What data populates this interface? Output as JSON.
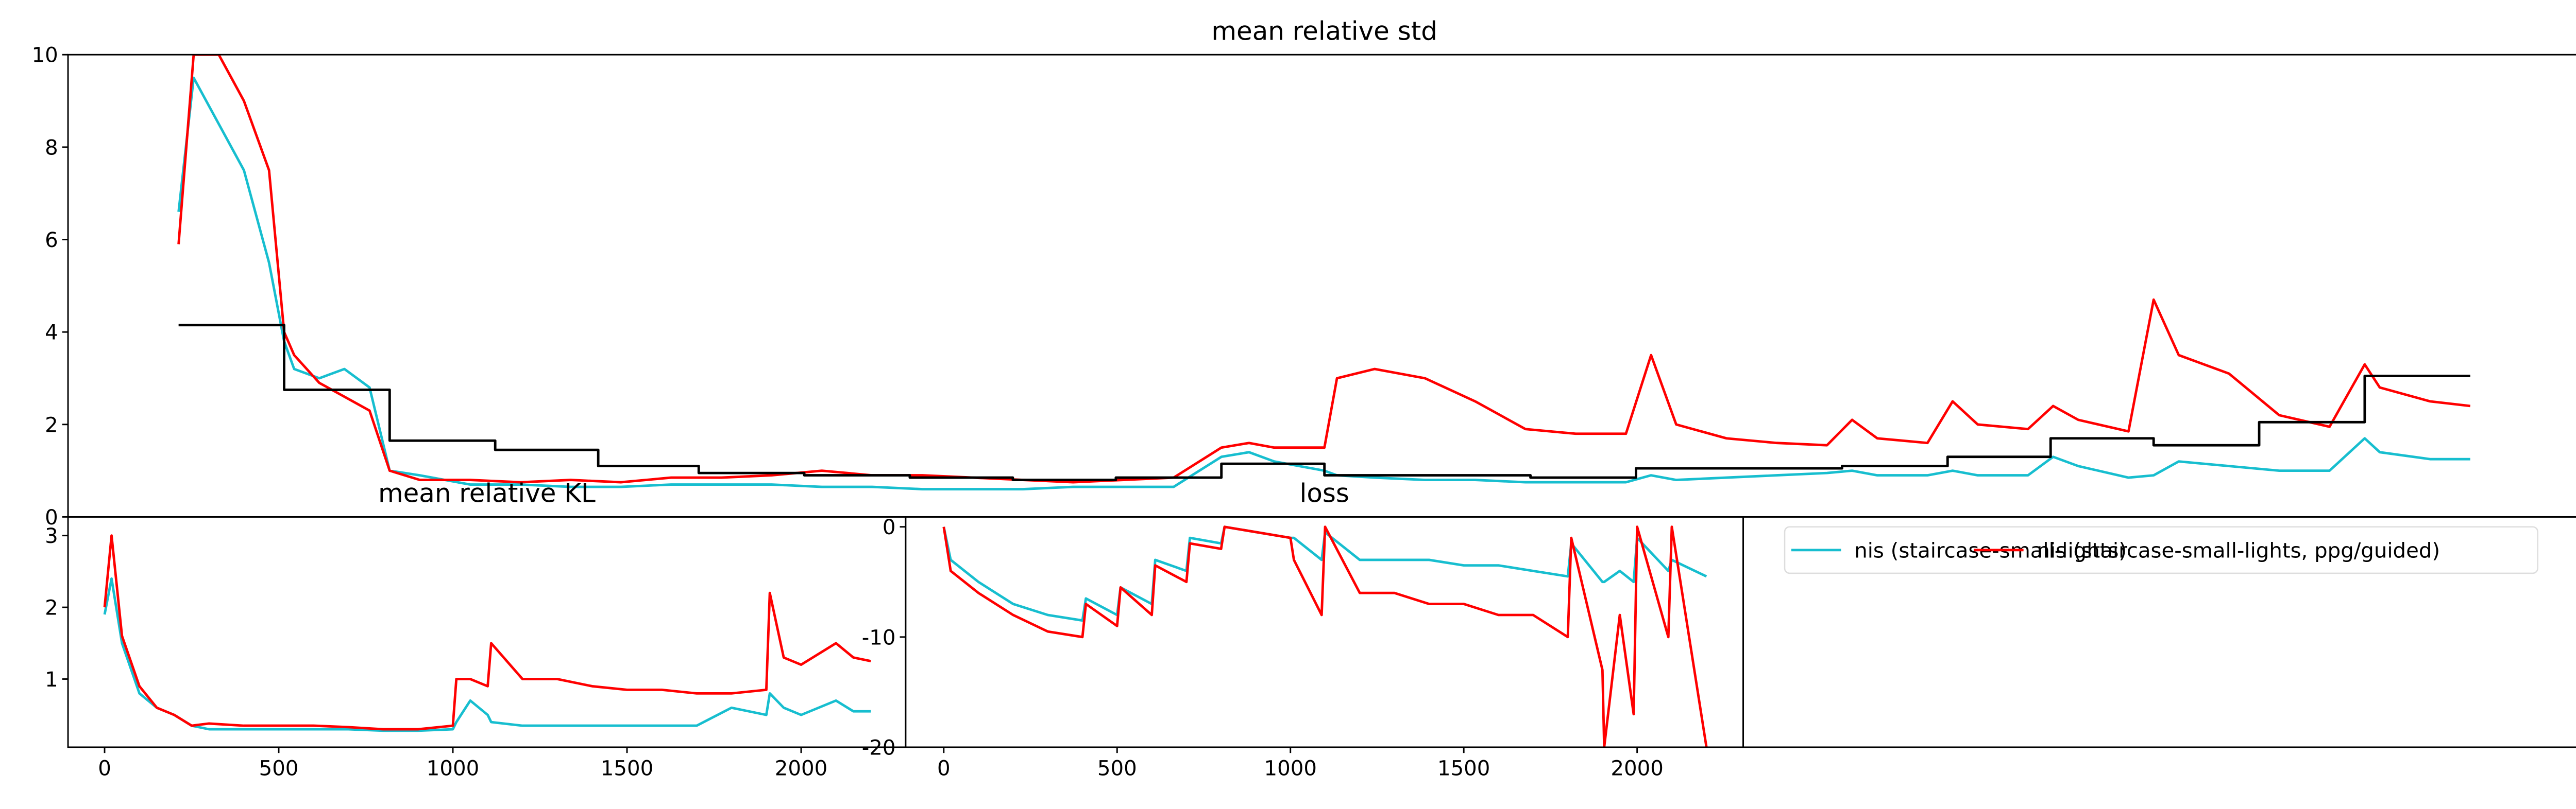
{
  "chart_data": [
    {
      "type": "line",
      "title": "mean relative std",
      "x": [
        4.4,
        5,
        6,
        7,
        8,
        8.6,
        9,
        10,
        11,
        12,
        12.8,
        14,
        16,
        18,
        20,
        22,
        24,
        26,
        28,
        30,
        32,
        34,
        36,
        38,
        40,
        42,
        44,
        45.9,
        47,
        48,
        50,
        50.5,
        52,
        54,
        56,
        58,
        60,
        62,
        63,
        64,
        66,
        68,
        70,
        71,
        72,
        74,
        75,
        76,
        78,
        79,
        80,
        82,
        83,
        84,
        86,
        88,
        90,
        91.4,
        92,
        94,
        95.6
      ],
      "xlim": [
        0,
        100
      ],
      "ylim": [
        0,
        10
      ],
      "yticks": [
        0,
        2,
        4,
        6,
        8,
        10
      ],
      "series": [
        {
          "color": "#17becf",
          "values": [
            6.6,
            9.5,
            8.5,
            7.5,
            5.5,
            3.8,
            3.2,
            3.0,
            3.2,
            2.8,
            1.0,
            0.9,
            0.7,
            0.7,
            0.65,
            0.65,
            0.7,
            0.7,
            0.7,
            0.65,
            0.65,
            0.6,
            0.6,
            0.6,
            0.65,
            0.65,
            0.65,
            1.3,
            1.4,
            1.2,
            1.0,
            0.9,
            0.85,
            0.8,
            0.8,
            0.75,
            0.75,
            0.75,
            0.9,
            0.8,
            0.85,
            0.9,
            0.95,
            1.0,
            0.9,
            0.9,
            1.0,
            0.9,
            0.9,
            1.3,
            1.1,
            0.85,
            0.9,
            1.2,
            1.1,
            1.0,
            1.0,
            1.7,
            1.4,
            1.25,
            1.25
          ]
        },
        {
          "color": "#ff0000",
          "values": [
            5.9,
            10,
            10,
            9,
            7.5,
            4.0,
            3.5,
            2.9,
            2.6,
            2.3,
            1.0,
            0.8,
            0.8,
            0.75,
            0.8,
            0.75,
            0.85,
            0.85,
            0.9,
            1.0,
            0.9,
            0.9,
            0.85,
            0.8,
            0.75,
            0.8,
            0.85,
            1.5,
            1.6,
            1.5,
            1.5,
            3.0,
            3.2,
            3.0,
            2.5,
            1.9,
            1.8,
            1.8,
            3.5,
            2.0,
            1.7,
            1.6,
            1.55,
            2.1,
            1.7,
            1.6,
            2.5,
            2.0,
            1.9,
            2.4,
            2.1,
            1.85,
            4.7,
            3.5,
            3.1,
            2.2,
            1.95,
            3.3,
            2.8,
            2.5,
            2.4
          ]
        },
        {
          "color": "#000000",
          "step": "post",
          "x": [
            4.4,
            8.6,
            12.8,
            17.0,
            21.1,
            25.1,
            29.3,
            33.5,
            37.6,
            41.7,
            45.9,
            50.0,
            54.1,
            58.2,
            62.4,
            66.5,
            70.6,
            74.8,
            78.9,
            83.0,
            87.2,
            91.4,
            95.6
          ],
          "values": [
            4.15,
            2.75,
            1.65,
            1.45,
            1.1,
            0.95,
            0.9,
            0.85,
            0.8,
            0.85,
            1.15,
            0.9,
            0.9,
            0.85,
            1.05,
            1.05,
            1.1,
            1.3,
            1.7,
            1.55,
            2.05,
            3.05,
            3.05
          ]
        }
      ]
    },
    {
      "type": "line",
      "title": "mean relative KL",
      "x": [
        0,
        20,
        50,
        100,
        150,
        200,
        250,
        300,
        400,
        500,
        600,
        700,
        800,
        900,
        1000,
        1010,
        1050,
        1100,
        1110,
        1200,
        1300,
        1400,
        1500,
        1600,
        1700,
        1800,
        1900,
        1910,
        1950,
        2000,
        2100,
        2150,
        2200
      ],
      "xlim": [
        -105,
        2300
      ],
      "xticks": [
        0,
        500,
        1000,
        1500,
        2000
      ],
      "ylim": [
        0.05,
        3.26
      ],
      "yticks": [
        1,
        2,
        3
      ],
      "series": [
        {
          "color": "#17becf",
          "values": [
            1.9,
            2.4,
            1.5,
            0.8,
            0.6,
            0.5,
            0.35,
            0.3,
            0.3,
            0.3,
            0.3,
            0.3,
            0.28,
            0.28,
            0.3,
            0.4,
            0.7,
            0.5,
            0.4,
            0.35,
            0.35,
            0.35,
            0.35,
            0.35,
            0.35,
            0.6,
            0.5,
            0.8,
            0.6,
            0.5,
            0.7,
            0.55,
            0.55
          ]
        },
        {
          "color": "#ff0000",
          "values": [
            2.0,
            3.0,
            1.6,
            0.9,
            0.6,
            0.5,
            0.35,
            0.38,
            0.35,
            0.35,
            0.35,
            0.33,
            0.3,
            0.3,
            0.35,
            1.0,
            1.0,
            0.9,
            1.5,
            1.0,
            1.0,
            0.9,
            0.85,
            0.85,
            0.8,
            0.8,
            0.85,
            2.2,
            1.3,
            1.2,
            1.5,
            1.3,
            1.25
          ]
        }
      ]
    },
    {
      "type": "line",
      "title": "loss",
      "x": [
        0,
        20,
        100,
        200,
        300,
        400,
        410,
        500,
        510,
        600,
        610,
        700,
        710,
        800,
        810,
        1000,
        1010,
        1090,
        1100,
        1200,
        1300,
        1400,
        1500,
        1600,
        1700,
        1800,
        1810,
        1900,
        1905,
        1950,
        1990,
        2000,
        2090,
        2100,
        2200
      ],
      "xlim": [
        -110,
        2306
      ],
      "xticks": [
        0,
        500,
        1000,
        1500,
        2000
      ],
      "ylim": [
        -20,
        0.9
      ],
      "yticks": [
        -20,
        -10,
        0
      ],
      "legend": "upper left",
      "series": [
        {
          "name": "nis (staircase-small-lights)",
          "color": "#17becf",
          "values": [
            0,
            -3,
            -5,
            -7,
            -8,
            -8.5,
            -6.5,
            -8,
            -5.5,
            -7,
            -3,
            -4,
            -1,
            -1.5,
            0,
            -1,
            -1,
            -3,
            -0.5,
            -3,
            -3,
            -3,
            -3.5,
            -3.5,
            -4,
            -4.5,
            -1.5,
            -5,
            -5,
            -4,
            -5,
            -1,
            -4,
            -3,
            -4.5
          ]
        },
        {
          "name": "nis (staircase-small-lights, ppg/guided)",
          "color": "#ff0000",
          "values": [
            0,
            -4,
            -6,
            -8,
            -9.5,
            -10,
            -7,
            -9,
            -5.5,
            -8,
            -3.5,
            -5,
            -1.5,
            -2,
            0,
            -1,
            -3,
            -8,
            0,
            -6,
            -6,
            -7,
            -7,
            -8,
            -8,
            -10,
            -1,
            -13,
            -20,
            -8,
            -17,
            0,
            -10,
            0,
            -20
          ]
        }
      ]
    }
  ]
}
